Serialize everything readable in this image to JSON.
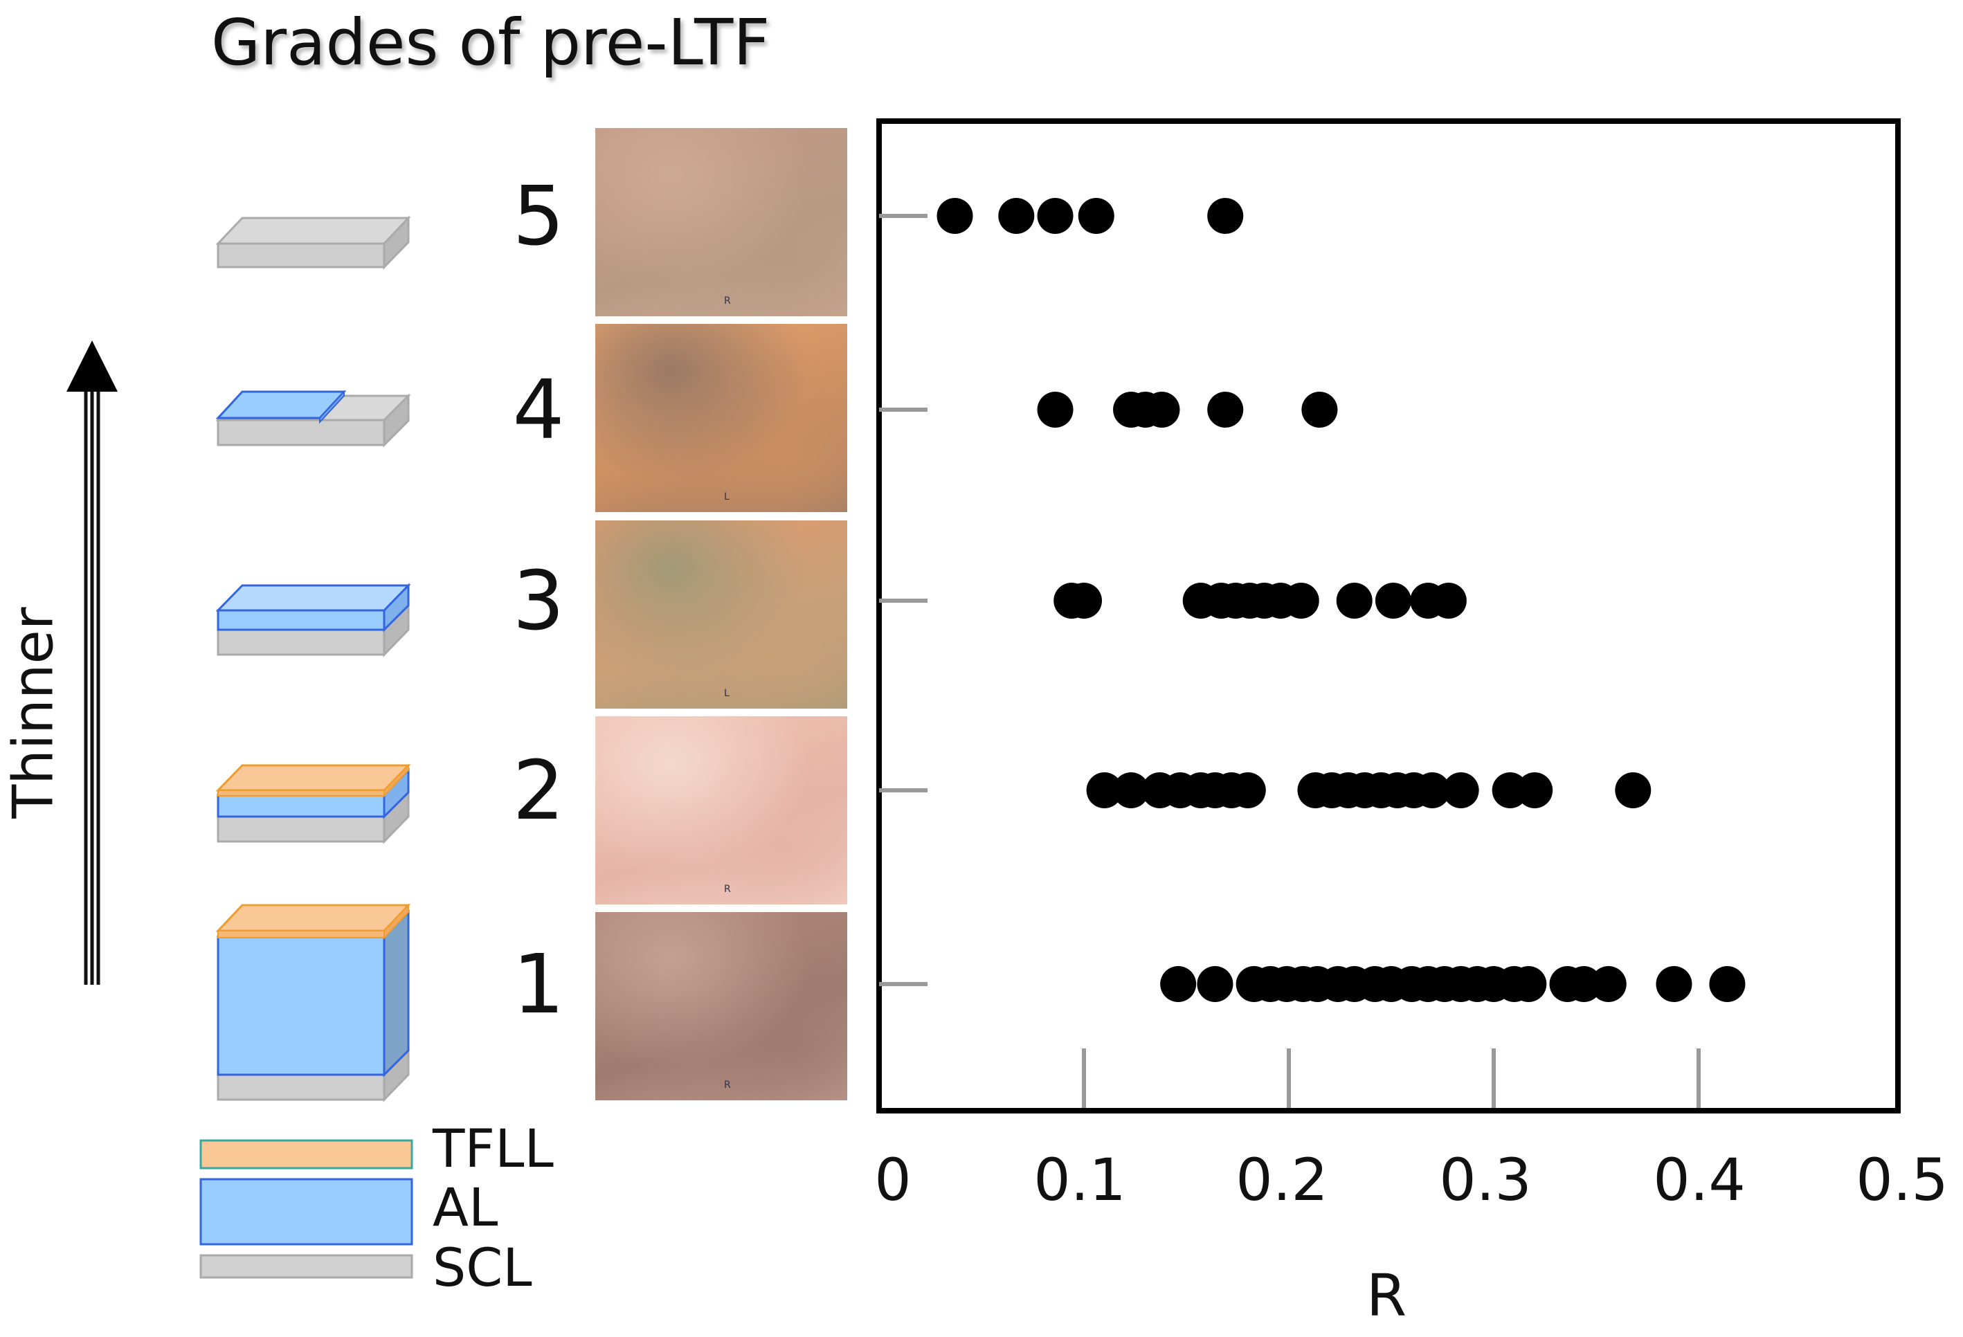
{
  "title": "Grades of pre-LTF",
  "arrow_label": "Thinner",
  "grades": [
    "5",
    "4",
    "3",
    "2",
    "1"
  ],
  "legend": [
    {
      "label": "TFLL",
      "fill": "#f9c896",
      "stroke": "#3aa8a0"
    },
    {
      "label": "AL",
      "fill": "#99ccff",
      "stroke": "#3366dd"
    },
    {
      "label": "SCL",
      "fill": "#d0d0d0",
      "stroke": "#aaaaaa"
    }
  ],
  "colors": {
    "tfll": "#f9c896",
    "tfll_edge": "#ef9c2e",
    "al": "#99ccff",
    "al_edge": "#3366dd",
    "scl": "#d0d0d0",
    "scl_edge": "#aaaaaa",
    "point": "#000000"
  },
  "photos": [
    {
      "grade": "5",
      "colors": [
        "#c49a86",
        "#b89a84",
        "#cdaa93"
      ]
    },
    {
      "grade": "4",
      "colors": [
        "#e7a36e",
        "#c98e62",
        "#9a7a66"
      ]
    },
    {
      "grade": "3",
      "colors": [
        "#e59a6e",
        "#c8a078",
        "#a39a78"
      ]
    },
    {
      "grade": "2",
      "colors": [
        "#f0c2b2",
        "#e6b4a6",
        "#f3d8cc"
      ]
    },
    {
      "grade": "1",
      "colors": [
        "#b08a7c",
        "#a07c70",
        "#c2a092"
      ]
    }
  ],
  "chart_data": {
    "type": "scatter",
    "xlabel": "R",
    "ylabel": "",
    "title": "",
    "xlim": [
      0,
      0.5
    ],
    "xticks": [
      "0",
      "0.1",
      "0.2",
      "0.3",
      "0.4",
      "0.5"
    ],
    "yticks": [
      "5",
      "4",
      "3",
      "2",
      "1"
    ],
    "grid": false,
    "series": [
      {
        "grade": 5,
        "x": [
          0.037,
          0.067,
          0.086,
          0.106,
          0.169
        ]
      },
      {
        "grade": 4,
        "x": [
          0.086,
          0.123,
          0.13,
          0.138,
          0.169,
          0.215
        ]
      },
      {
        "grade": 3,
        "x": [
          0.094,
          0.1,
          0.157,
          0.167,
          0.174,
          0.181,
          0.188,
          0.196,
          0.206,
          0.232,
          0.251,
          0.268,
          0.278
        ]
      },
      {
        "grade": 2,
        "x": [
          0.11,
          0.123,
          0.137,
          0.147,
          0.157,
          0.164,
          0.172,
          0.18,
          0.213,
          0.221,
          0.229,
          0.237,
          0.245,
          0.253,
          0.261,
          0.27,
          0.284,
          0.308,
          0.32,
          0.368
        ]
      },
      {
        "grade": 1,
        "x": [
          0.146,
          0.164,
          0.183,
          0.191,
          0.199,
          0.207,
          0.214,
          0.224,
          0.232,
          0.242,
          0.25,
          0.26,
          0.268,
          0.276,
          0.284,
          0.292,
          0.3,
          0.31,
          0.317,
          0.336,
          0.344,
          0.356,
          0.388,
          0.414
        ]
      }
    ]
  }
}
